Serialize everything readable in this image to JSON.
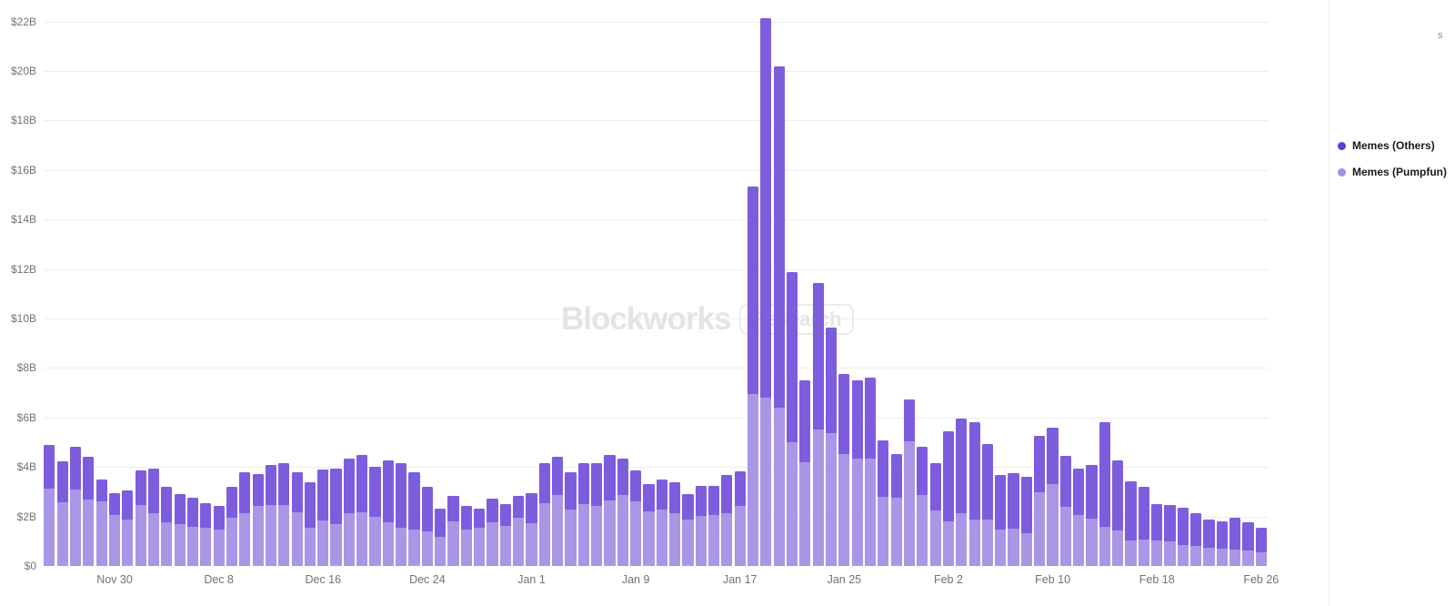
{
  "watermark": {
    "brand": "Blockworks",
    "badge": "Research"
  },
  "top_right_text": "s",
  "legend": {
    "items": [
      {
        "label": "Memes (Others)",
        "color": "#5f3cd2"
      },
      {
        "label": "Memes (Pumpfun)",
        "color": "#a28de3"
      }
    ]
  },
  "chart_data": {
    "type": "bar",
    "stacked": true,
    "title": "",
    "ylim": [
      0,
      22.6
    ],
    "grid": true,
    "legend_position": "right",
    "y_tick_labels": [
      "$0",
      "$2B",
      "$4B",
      "$6B",
      "$8B",
      "$10B",
      "$12B",
      "$14B",
      "$16B",
      "$18B",
      "$20B",
      "$22B"
    ],
    "x_tick_labels": [
      "Nov 30",
      "Dec 8",
      "Dec 16",
      "Dec 24",
      "Jan 1",
      "Jan 9",
      "Jan 17",
      "Jan 25",
      "Feb 2",
      "Feb 10",
      "Feb 18",
      "Feb 26"
    ],
    "x_tick_indices": [
      5,
      13,
      21,
      29,
      37,
      45,
      53,
      61,
      69,
      77,
      85,
      93
    ],
    "categories": [
      "Nov 25",
      "Nov 26",
      "Nov 27",
      "Nov 28",
      "Nov 29",
      "Nov 30",
      "Dec 1",
      "Dec 2",
      "Dec 3",
      "Dec 4",
      "Dec 5",
      "Dec 6",
      "Dec 7",
      "Dec 8",
      "Dec 9",
      "Dec 10",
      "Dec 11",
      "Dec 12",
      "Dec 13",
      "Dec 14",
      "Dec 15",
      "Dec 16",
      "Dec 17",
      "Dec 18",
      "Dec 19",
      "Dec 20",
      "Dec 21",
      "Dec 22",
      "Dec 23",
      "Dec 24",
      "Dec 25",
      "Dec 26",
      "Dec 27",
      "Dec 28",
      "Dec 29",
      "Dec 30",
      "Dec 31",
      "Jan 1",
      "Jan 2",
      "Jan 3",
      "Jan 4",
      "Jan 5",
      "Jan 6",
      "Jan 7",
      "Jan 8",
      "Jan 9",
      "Jan 10",
      "Jan 11",
      "Jan 12",
      "Jan 13",
      "Jan 14",
      "Jan 15",
      "Jan 16",
      "Jan 17",
      "Jan 18",
      "Jan 19",
      "Jan 20",
      "Jan 21",
      "Jan 22",
      "Jan 23",
      "Jan 24",
      "Jan 25",
      "Jan 26",
      "Jan 27",
      "Jan 28",
      "Jan 29",
      "Jan 30",
      "Jan 31",
      "Feb 1",
      "Feb 2",
      "Feb 3",
      "Feb 4",
      "Feb 5",
      "Feb 6",
      "Feb 7",
      "Feb 8",
      "Feb 9",
      "Feb 10",
      "Feb 11",
      "Feb 12",
      "Feb 13",
      "Feb 14",
      "Feb 15",
      "Feb 16",
      "Feb 17",
      "Feb 18",
      "Feb 19",
      "Feb 20",
      "Feb 21",
      "Feb 22",
      "Feb 23",
      "Feb 24",
      "Feb 25",
      "Feb 26"
    ],
    "series": [
      {
        "name": "Memes (Others)",
        "color": "#7d5dde",
        "values": [
          1.76,
          1.67,
          1.73,
          1.74,
          0.88,
          0.88,
          1.17,
          1.41,
          1.83,
          1.44,
          1.2,
          1.18,
          1.02,
          0.96,
          1.23,
          1.68,
          1.28,
          1.63,
          1.72,
          1.64,
          1.85,
          2.06,
          2.23,
          2.21,
          2.29,
          2.02,
          2.5,
          2.64,
          2.31,
          1.79,
          1.17,
          1.01,
          0.96,
          0.76,
          0.96,
          0.86,
          0.86,
          1.21,
          1.62,
          1.55,
          1.53,
          1.65,
          1.71,
          1.84,
          1.47,
          1.26,
          1.1,
          1.22,
          1.25,
          1.05,
          1.2,
          1.17,
          1.52,
          1.41,
          8.38,
          15.35,
          13.77,
          6.86,
          3.3,
          5.92,
          4.25,
          3.25,
          3.18,
          3.25,
          2.27,
          1.77,
          1.7,
          1.97,
          1.9,
          3.65,
          3.81,
          3.95,
          3.05,
          2.21,
          2.24,
          2.29,
          2.29,
          2.28,
          2.06,
          1.86,
          2.18,
          4.25,
          2.81,
          2.37,
          2.12,
          1.45,
          1.47,
          1.51,
          1.32,
          1.13,
          1.1,
          1.27,
          1.17,
          0.98
        ]
      },
      {
        "name": "Memes (Pumpfun)",
        "color": "#aa96e6",
        "values": [
          3.12,
          2.57,
          3.08,
          2.67,
          2.61,
          2.06,
          1.87,
          2.45,
          2.12,
          1.75,
          1.69,
          1.59,
          1.53,
          1.47,
          1.96,
          2.12,
          2.43,
          2.45,
          2.45,
          2.16,
          1.53,
          1.84,
          1.69,
          2.12,
          2.18,
          2.0,
          1.76,
          1.53,
          1.47,
          1.41,
          1.16,
          1.81,
          1.47,
          1.54,
          1.75,
          1.63,
          1.96,
          1.73,
          2.55,
          2.86,
          2.27,
          2.49,
          2.43,
          2.63,
          2.86,
          2.61,
          2.21,
          2.27,
          2.15,
          1.87,
          2.02,
          2.06,
          2.14,
          2.43,
          6.95,
          6.8,
          6.4,
          5.0,
          4.2,
          5.51,
          5.37,
          4.51,
          4.33,
          4.35,
          2.79,
          2.74,
          5.02,
          2.85,
          2.24,
          1.8,
          2.13,
          1.87,
          1.89,
          1.47,
          1.5,
          1.32,
          2.98,
          3.3,
          2.39,
          2.06,
          1.9,
          1.57,
          1.45,
          1.04,
          1.07,
          1.04,
          1.0,
          0.83,
          0.8,
          0.74,
          0.71,
          0.67,
          0.61,
          0.55
        ]
      }
    ]
  }
}
